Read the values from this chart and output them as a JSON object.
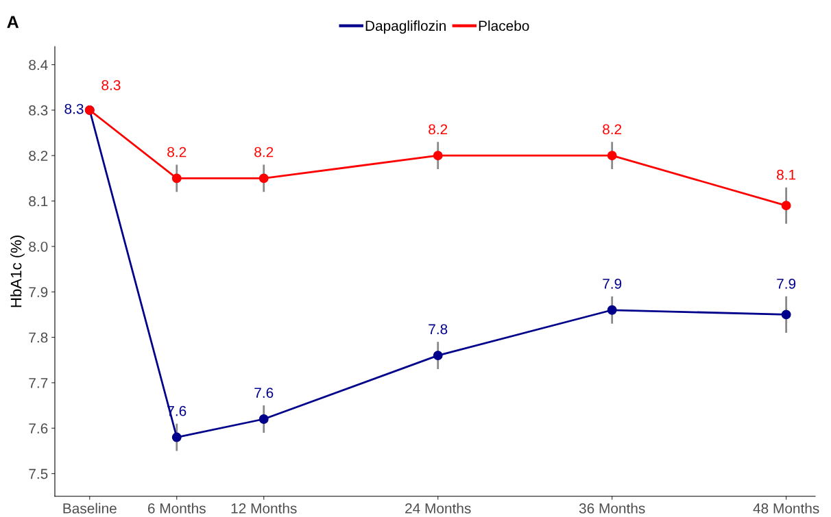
{
  "chart_data": {
    "type": "line",
    "ylabel": "HbA1c (%)",
    "annotations": [
      "A"
    ],
    "x": [
      0,
      6,
      12,
      24,
      36,
      48
    ],
    "xlim": [
      -2.4,
      50
    ],
    "xticks": [
      {
        "value": 0,
        "label": "Baseline"
      },
      {
        "value": 6,
        "label": "6 Months"
      },
      {
        "value": 12,
        "label": "12 Months"
      },
      {
        "value": 24,
        "label": "24 Months"
      },
      {
        "value": 36,
        "label": "36 Months"
      },
      {
        "value": 48,
        "label": "48 Months"
      }
    ],
    "ylim": [
      7.45,
      8.44
    ],
    "yticks": [
      7.5,
      7.6,
      7.7,
      7.8,
      7.9,
      {
        "value": 8.0,
        "label": "8.0"
      },
      8.1,
      8.2,
      8.3,
      8.4
    ],
    "series": [
      {
        "name": "Dapagliflozin",
        "color": "#00008b",
        "values": [
          8.3,
          7.58,
          7.62,
          7.76,
          7.86,
          7.85
        ],
        "errors": [
          null,
          0.03,
          0.03,
          0.03,
          0.03,
          0.04
        ],
        "value_labels": [
          "8.3",
          "7.6",
          "7.6",
          "7.8",
          "7.9",
          "7.9"
        ]
      },
      {
        "name": "Placebo",
        "color": "#ff0000",
        "values": [
          8.3,
          8.15,
          8.15,
          8.2,
          8.2,
          8.09
        ],
        "errors": [
          null,
          0.03,
          0.03,
          0.03,
          0.03,
          0.04
        ],
        "value_labels": [
          "8.3",
          "8.2",
          "8.2",
          "8.2",
          "8.2",
          "8.1"
        ]
      }
    ],
    "marker": "circle",
    "grid": false,
    "legend": "top"
  }
}
